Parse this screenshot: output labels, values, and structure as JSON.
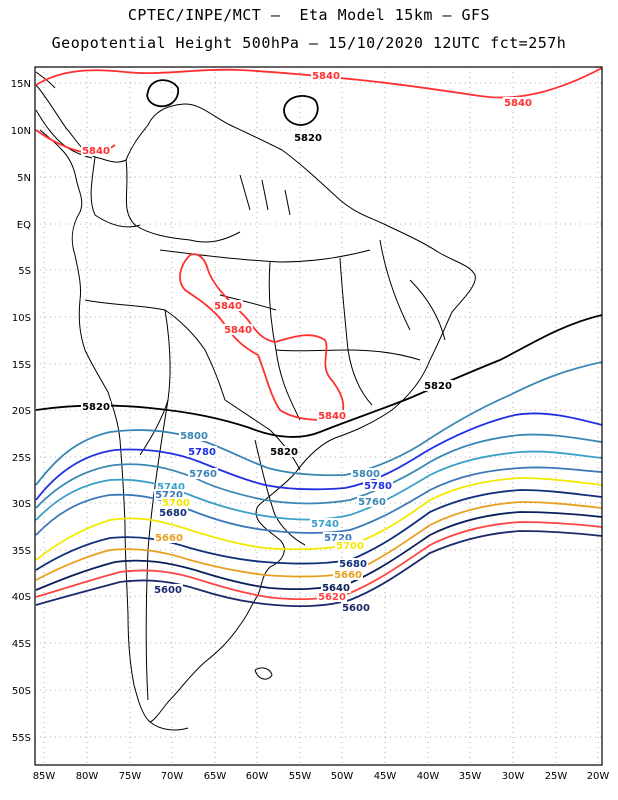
{
  "header": {
    "line1": "CPTEC/INPE/MCT –  Eta Model 15km – GFS",
    "line2": "Geopotential Height 500hPa – 15/10/2020 12UTC fct=257h"
  },
  "axes": {
    "lat_labels": [
      "15N",
      "10N",
      "5N",
      "EQ",
      "5S",
      "10S",
      "15S",
      "20S",
      "25S",
      "30S",
      "35S",
      "40S",
      "45S",
      "50S",
      "55S"
    ],
    "lon_labels": [
      "85W",
      "80W",
      "75W",
      "70W",
      "65W",
      "60W",
      "55W",
      "50W",
      "45W",
      "40W",
      "35W",
      "30W",
      "25W",
      "20W"
    ],
    "grid": "dotted"
  },
  "colors": {
    "c5600": "#1a2a6c",
    "c5620": "#ff4444",
    "c5640": "#0a1f5c",
    "c5660": "#e8a020",
    "c5680": "#102f7a",
    "c5700": "#f5e800",
    "c5720": "#3a78b8",
    "c5740": "#3aa0c8",
    "c5760": "#3a86b4",
    "c5780": "#2030e0",
    "c5800": "#3a86b4",
    "c5820": "#000000",
    "c5840": "#ff3030",
    "coast": "#000000"
  },
  "contour_labels": [
    {
      "id": "l5840a",
      "text": "5840",
      "color": "c5840"
    },
    {
      "id": "l5840b",
      "text": "5840",
      "color": "c5840"
    },
    {
      "id": "l5840c",
      "text": "5840",
      "color": "c5840"
    },
    {
      "id": "l5840d",
      "text": "5840",
      "color": "c5840"
    },
    {
      "id": "l5840e",
      "text": "5840",
      "color": "c5840"
    },
    {
      "id": "l5840f",
      "text": "5840",
      "color": "c5840"
    },
    {
      "id": "l5820a",
      "text": "5820",
      "color": "c5820"
    },
    {
      "id": "l5820b",
      "text": "5820",
      "color": "c5820"
    },
    {
      "id": "l5820c",
      "text": "5820",
      "color": "c5820"
    },
    {
      "id": "l5820d",
      "text": "5820",
      "color": "c5820"
    },
    {
      "id": "l5800a",
      "text": "5800",
      "color": "c5800"
    },
    {
      "id": "l5800b",
      "text": "5800",
      "color": "c5800"
    },
    {
      "id": "l5780a",
      "text": "5780",
      "color": "c5780"
    },
    {
      "id": "l5780b",
      "text": "5780",
      "color": "c5780"
    },
    {
      "id": "l5760a",
      "text": "5760",
      "color": "c5760"
    },
    {
      "id": "l5760b",
      "text": "5760",
      "color": "c5760"
    },
    {
      "id": "l5740a",
      "text": "5740",
      "color": "c5740"
    },
    {
      "id": "l5740b",
      "text": "5740",
      "color": "c5740"
    },
    {
      "id": "l5720a",
      "text": "5720",
      "color": "c5720"
    },
    {
      "id": "l5720b",
      "text": "5720",
      "color": "c5720"
    },
    {
      "id": "l5700a",
      "text": "5700",
      "color": "c5700"
    },
    {
      "id": "l5700b",
      "text": "5700",
      "color": "c5700"
    },
    {
      "id": "l5680a",
      "text": "5680",
      "color": "c5680"
    },
    {
      "id": "l5680b",
      "text": "5680",
      "color": "c5680"
    },
    {
      "id": "l5660a",
      "text": "5660",
      "color": "c5660"
    },
    {
      "id": "l5660b",
      "text": "5660",
      "color": "c5660"
    },
    {
      "id": "l5640a",
      "text": "5640",
      "color": "c5640"
    },
    {
      "id": "l5620a",
      "text": "5620",
      "color": "c5620"
    },
    {
      "id": "l5600a",
      "text": "5600",
      "color": "c5600"
    },
    {
      "id": "l5600b",
      "text": "5600",
      "color": "c5600"
    }
  ]
}
